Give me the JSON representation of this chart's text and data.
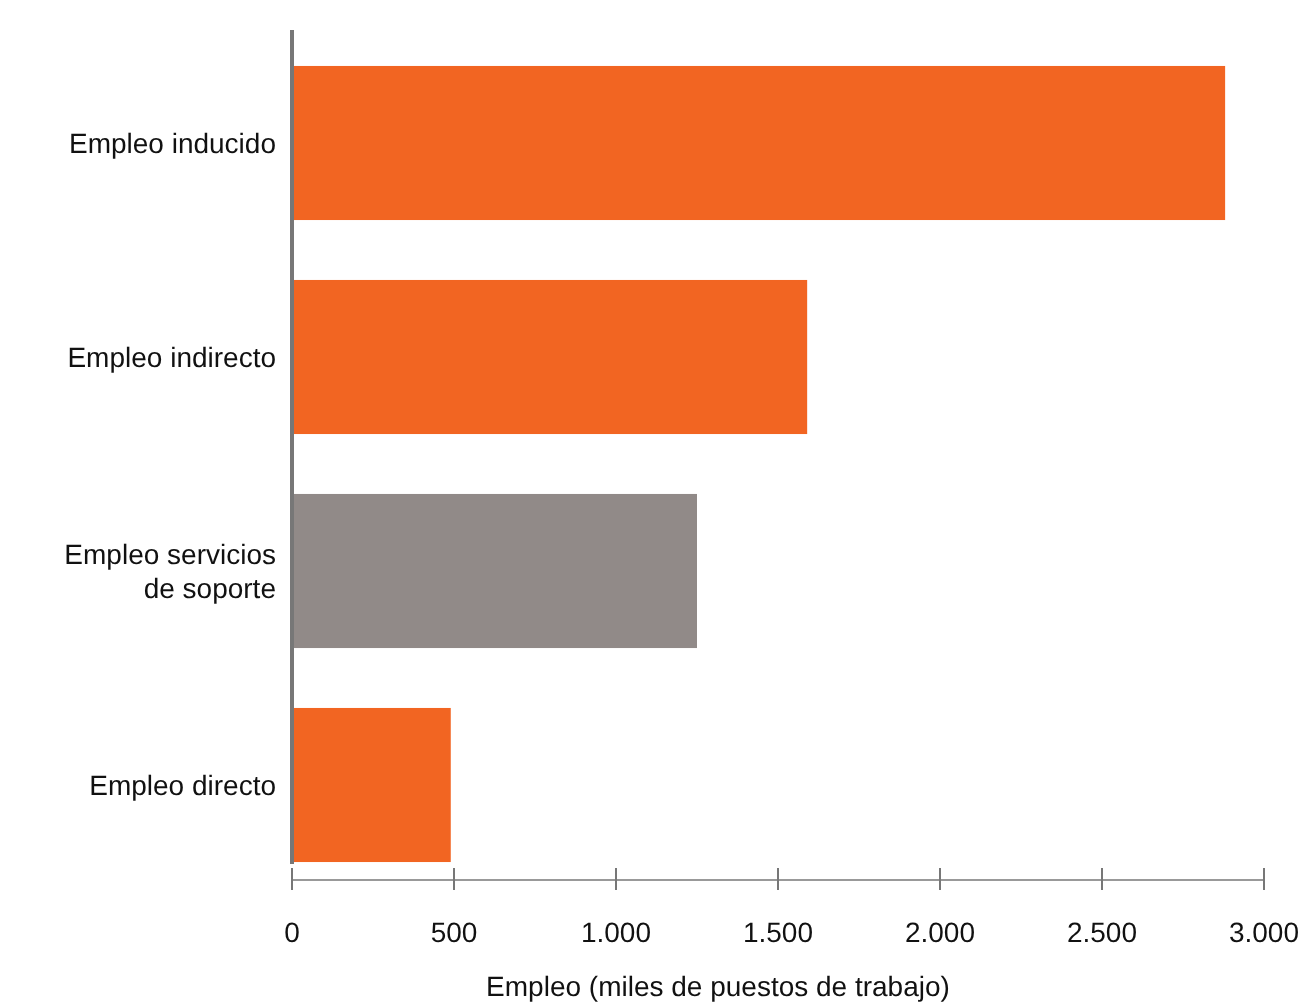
{
  "chart_data": {
    "type": "bar",
    "orientation": "horizontal",
    "categories": [
      "Empleo inducido",
      "Empleo indirecto",
      "Empleo servicios de soporte",
      "Empleo directo"
    ],
    "values": [
      2880,
      1590,
      1250,
      490
    ],
    "colors": [
      "#f26522",
      "#f26522",
      "#918a88",
      "#f26522"
    ],
    "xlim": [
      0,
      3000
    ],
    "xticks": [
      0,
      500,
      {
        "value": 1000,
        "label": "1.000"
      },
      {
        "value": 1500,
        "label": "1.500"
      },
      {
        "value": 2000,
        "label": "2.000"
      },
      {
        "value": 2500,
        "label": "2.500"
      },
      {
        "value": 3000,
        "label": "3.000"
      }
    ],
    "xlabel": "Empleo (miles de puestos de trabajo)",
    "grid": false
  }
}
